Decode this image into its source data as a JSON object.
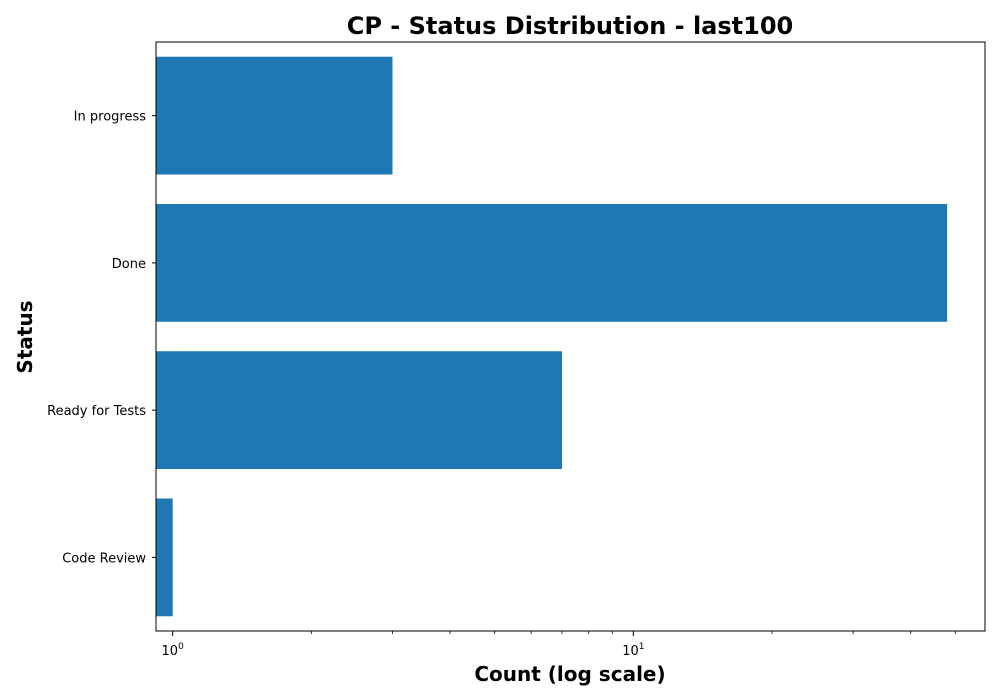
{
  "chart_data": {
    "type": "bar",
    "orientation": "horizontal",
    "title": "CP - Status Distribution - last100",
    "xlabel": "Count (log scale)",
    "ylabel": "Status",
    "xscale": "log",
    "xlim": [
      0.92,
      58
    ],
    "x_major_ticks": [
      {
        "value": 1,
        "base": "10",
        "exponent": "0"
      },
      {
        "value": 10,
        "base": "10",
        "exponent": "1"
      }
    ],
    "categories": [
      "In progress",
      "Done",
      "Ready for Tests",
      "Code Review"
    ],
    "values": [
      3,
      48,
      7,
      1
    ],
    "bar_color": "#1f77b4",
    "grid": false,
    "legend": "none"
  }
}
